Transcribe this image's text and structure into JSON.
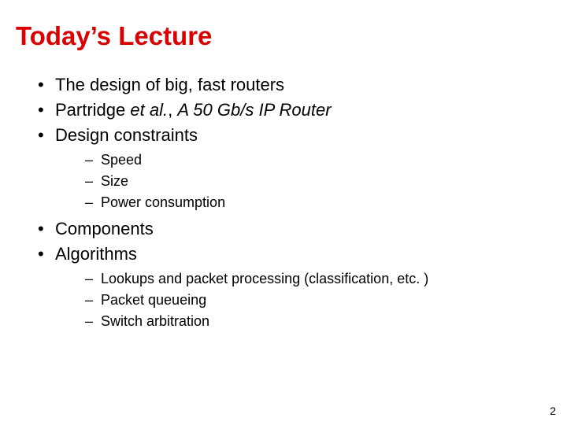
{
  "title_color": "#d90000",
  "text_color": "#000000",
  "background_color": "#ffffff",
  "title": "Today’s Lecture",
  "bullets": [
    {
      "text": "The design of big, fast routers"
    },
    {
      "prefix": "Partridge ",
      "italic_prefix": "et al.",
      "middle": ", ",
      "italic_rest": "A 50 Gb/s IP Router"
    },
    {
      "text": "Design constraints",
      "children": [
        {
          "text": "Speed"
        },
        {
          "text": "Size"
        },
        {
          "text": "Power consumption"
        }
      ]
    },
    {
      "text": "Components"
    },
    {
      "text": "Algorithms",
      "children": [
        {
          "text": "Lookups and packet processing (classification, etc. )"
        },
        {
          "text": "Packet queueing"
        },
        {
          "text": "Switch arbitration"
        }
      ]
    }
  ],
  "page_number": "2"
}
